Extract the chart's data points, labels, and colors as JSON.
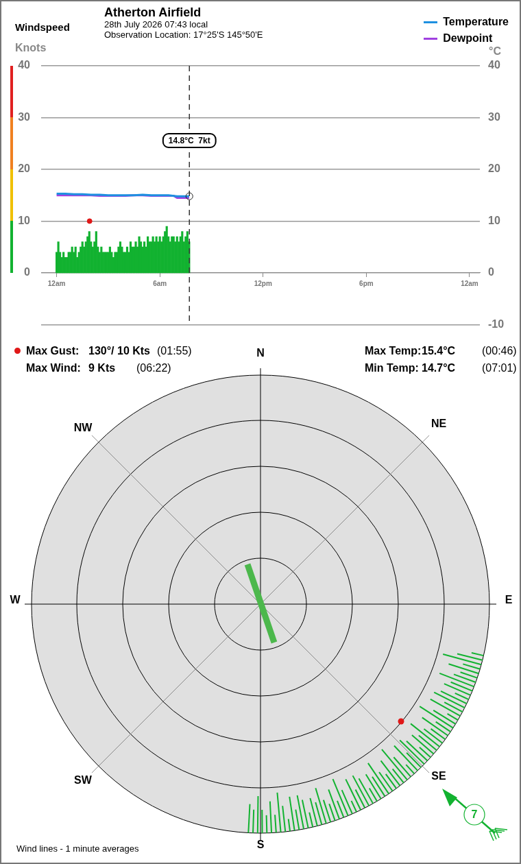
{
  "chart_data": [
    {
      "type": "bar",
      "title": "Atherton Airfield",
      "subtitle": "28th July 2026  07:43 local",
      "annotations": [
        "Observation Location: 17°25'S 145°50'E",
        "Windspeed"
      ],
      "ylabel": "Knots",
      "y2label": "°C",
      "x": [
        "2026-07-28T00:00",
        "2026-07-28T00:06",
        "2026-07-28T00:12",
        "2026-07-28T00:18",
        "2026-07-28T00:24",
        "2026-07-28T00:30",
        "2026-07-28T00:36",
        "2026-07-28T00:42",
        "2026-07-28T00:48",
        "2026-07-28T00:54",
        "2026-07-28T01:00",
        "2026-07-28T01:06",
        "2026-07-28T01:12",
        "2026-07-28T01:18",
        "2026-07-28T01:24",
        "2026-07-28T01:30",
        "2026-07-28T01:36",
        "2026-07-28T01:42",
        "2026-07-28T01:48",
        "2026-07-28T01:54",
        "2026-07-28T02:00",
        "2026-07-28T02:06",
        "2026-07-28T02:12",
        "2026-07-28T02:18",
        "2026-07-28T02:24",
        "2026-07-28T02:30",
        "2026-07-28T02:36",
        "2026-07-28T02:42",
        "2026-07-28T02:48",
        "2026-07-28T02:54",
        "2026-07-28T03:00",
        "2026-07-28T03:06",
        "2026-07-28T03:12",
        "2026-07-28T03:18",
        "2026-07-28T03:24",
        "2026-07-28T03:30",
        "2026-07-28T03:36",
        "2026-07-28T03:42",
        "2026-07-28T03:48",
        "2026-07-28T03:54",
        "2026-07-28T04:00",
        "2026-07-28T04:06",
        "2026-07-28T04:12",
        "2026-07-28T04:18",
        "2026-07-28T04:24",
        "2026-07-28T04:30",
        "2026-07-28T04:36",
        "2026-07-28T04:42",
        "2026-07-28T04:48",
        "2026-07-28T04:54",
        "2026-07-28T05:00",
        "2026-07-28T05:06",
        "2026-07-28T05:12",
        "2026-07-28T05:18",
        "2026-07-28T05:24",
        "2026-07-28T05:30",
        "2026-07-28T05:36",
        "2026-07-28T05:42",
        "2026-07-28T05:48",
        "2026-07-28T05:54",
        "2026-07-28T06:00",
        "2026-07-28T06:06",
        "2026-07-28T06:12",
        "2026-07-28T06:18",
        "2026-07-28T06:24",
        "2026-07-28T06:30",
        "2026-07-28T06:36",
        "2026-07-28T06:42",
        "2026-07-28T06:48",
        "2026-07-28T06:54",
        "2026-07-28T07:00",
        "2026-07-28T07:06",
        "2026-07-28T07:12",
        "2026-07-28T07:18",
        "2026-07-28T07:24",
        "2026-07-28T07:30",
        "2026-07-28T07:36",
        "2026-07-28T07:42"
      ],
      "series": [
        {
          "type": "bar",
          "color": "#12b230",
          "values": [
            4,
            6,
            4,
            3,
            4,
            3,
            3,
            4,
            4,
            5,
            4,
            5,
            3,
            4,
            5,
            6,
            5,
            6,
            7,
            8,
            6,
            5,
            6,
            8,
            5,
            4,
            5,
            4,
            4,
            4,
            4,
            5,
            4,
            3,
            4,
            4,
            5,
            6,
            5,
            4,
            4,
            5,
            4,
            6,
            5,
            5,
            6,
            5,
            7,
            6,
            5,
            6,
            5,
            7,
            6,
            6,
            7,
            6,
            7,
            6,
            7,
            6,
            7,
            8,
            9,
            7,
            6,
            7,
            7,
            6,
            7,
            6,
            7,
            8,
            6,
            7,
            8,
            6
          ]
        },
        {
          "type": "line",
          "name": "Temperature",
          "color": "#1e90e0",
          "axis": "y2",
          "x": [
            "2026-07-28T00:00",
            "2026-07-28T00:30",
            "2026-07-28T01:00",
            "2026-07-28T01:30",
            "2026-07-28T02:00",
            "2026-07-28T02:30",
            "2026-07-28T03:00",
            "2026-07-28T03:30",
            "2026-07-28T04:00",
            "2026-07-28T04:30",
            "2026-07-28T05:00",
            "2026-07-28T05:30",
            "2026-07-28T06:00",
            "2026-07-28T06:30",
            "2026-07-28T07:00",
            "2026-07-28T07:30",
            "2026-07-28T07:42"
          ],
          "values": [
            15.3,
            15.3,
            15.2,
            15.2,
            15.1,
            15.1,
            15.0,
            15.0,
            15.0,
            15.0,
            15.1,
            15.0,
            15.0,
            15.0,
            14.8,
            14.8,
            14.8
          ]
        },
        {
          "type": "line",
          "name": "Dewpoint",
          "color": "#a040e0",
          "axis": "y2",
          "x": [
            "2026-07-28T00:00",
            "2026-07-28T00:30",
            "2026-07-28T01:00",
            "2026-07-28T01:30",
            "2026-07-28T02:00",
            "2026-07-28T02:30",
            "2026-07-28T03:00",
            "2026-07-28T03:30",
            "2026-07-28T04:00",
            "2026-07-28T04:30",
            "2026-07-28T05:00",
            "2026-07-28T05:30",
            "2026-07-28T06:00",
            "2026-07-28T06:30",
            "2026-07-28T06:48",
            "2026-07-28T07:00",
            "2026-07-28T07:42"
          ],
          "values": [
            15.0,
            15.0,
            15.0,
            15.0,
            15.0,
            14.9,
            14.9,
            14.9,
            14.9,
            15.0,
            15.0,
            14.9,
            14.9,
            14.9,
            14.9,
            14.5,
            14.5
          ]
        },
        {
          "type": "scatter",
          "color": "#e01818",
          "marker": "circle",
          "x": [
            "2026-07-28T01:55"
          ],
          "values": [
            10
          ]
        }
      ],
      "xlim": [
        "2026-07-27T23:06",
        "2026-07-29T00:36"
      ],
      "xticks": [
        {
          "value": "2026-07-28T00:00",
          "label": "12am"
        },
        {
          "value": "2026-07-28T06:00",
          "label": "6am"
        },
        {
          "value": "2026-07-28T12:00",
          "label": "12pm"
        },
        {
          "value": "2026-07-28T18:00",
          "label": "6pm"
        },
        {
          "value": "2026-07-29T00:00",
          "label": "12am"
        }
      ],
      "ylim": [
        -10,
        40
      ],
      "yticks": [
        0,
        10,
        20,
        30,
        40
      ],
      "y2lim": [
        -10,
        40
      ],
      "y2ticks": [
        -10,
        0,
        10,
        20,
        30,
        40
      ],
      "grid": "y",
      "legend": "top right",
      "ref_lines": [
        {
          "axis": "x",
          "value": "2026-07-28T07:43",
          "label": "14.8°C  7kt",
          "color": "#333333",
          "line_style": "dashed"
        }
      ]
    },
    {
      "type": "other",
      "categories": [
        "N",
        "NE",
        "E",
        "SE",
        "S",
        "SW",
        "W",
        "NW"
      ],
      "annotations": [
        "Max Gust:",
        "130°/ 10 Kts",
        "(01:55)",
        "Max Wind:",
        "9 Kts",
        "(06:22)",
        "Max Temp:",
        "15.4°C",
        "(00:46)",
        "Min Temp:",
        "14.7°C",
        "(07:01)",
        "Wind lines - 1 minute averages",
        "7"
      ]
    }
  ]
}
